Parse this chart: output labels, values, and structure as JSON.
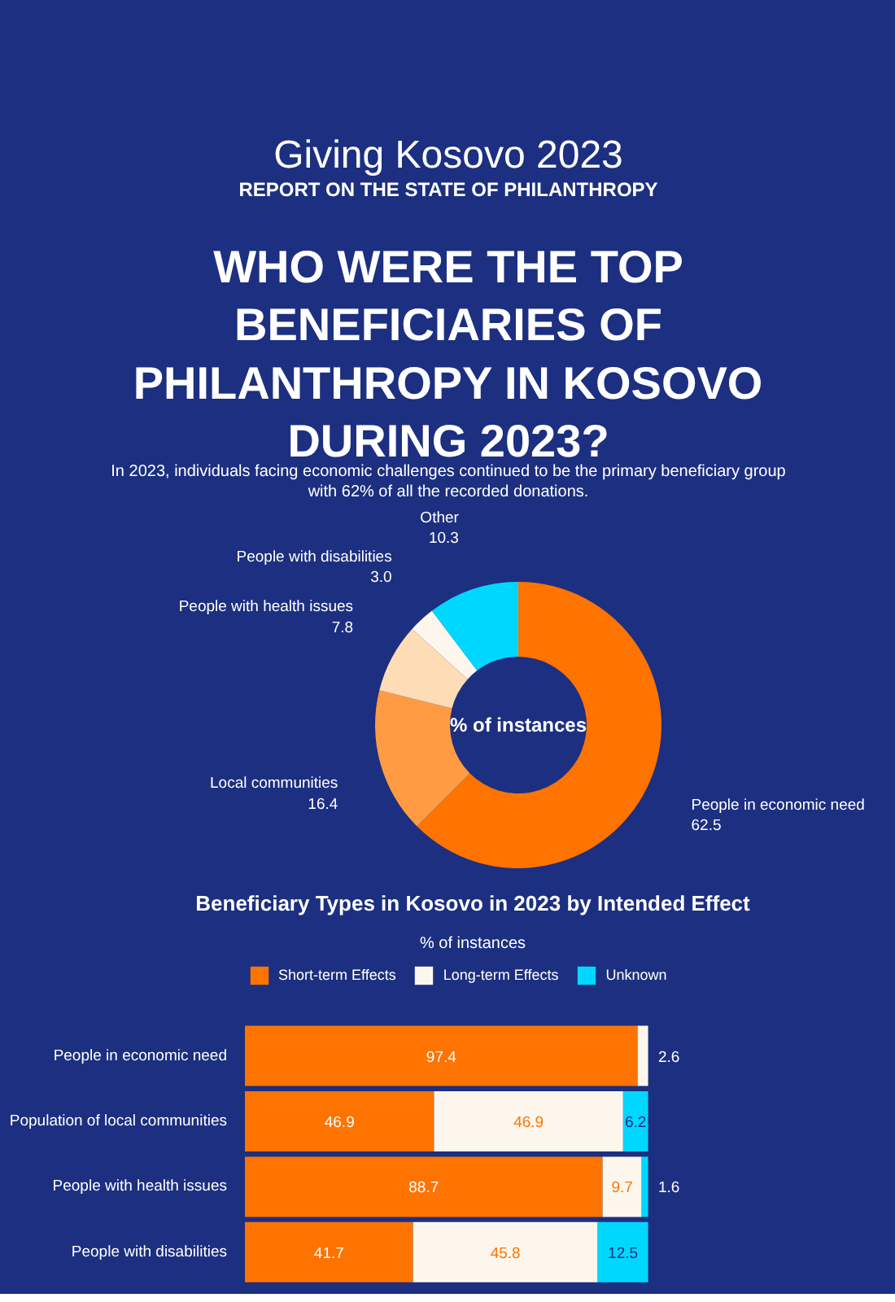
{
  "chart_data": [
    {
      "type": "donut",
      "title": "WHO WERE THE TOP BENEFICIARIES OF PHILANTHROPY IN KOSOVO DURING 2023?",
      "annotations": [
        "Giving Kosovo 2023",
        "REPORT ON THE STATE OF PHILANTHROPY",
        "In 2023, individuals facing economic challenges continued to be the primary beneficiary group with 62% of all the recorded donations.",
        "% of instances"
      ],
      "categories": [
        "People in economic need",
        "Local communities",
        "People with health issues",
        "People with disabilities",
        "Other"
      ],
      "values": [
        62.5,
        16.4,
        7.8,
        3.0,
        10.3
      ],
      "colors": [
        "#ff7300",
        "#ff9b42",
        "#fddcb6",
        "#fdf6ec",
        "#00d7ff"
      ],
      "value_labels": [
        "62.5",
        "16.4",
        "7.8",
        "3.0",
        "10.3"
      ]
    },
    {
      "type": "bar",
      "title": "Beneficiary Types in Kosovo in 2023 by Intended Effect",
      "subtitle": "% of instances",
      "orientation": "horizontal",
      "stacked": true,
      "categories": [
        "People in economic need",
        "Population of local communities",
        "People with health issues",
        "People with disabilities"
      ],
      "series": [
        {
          "name": "Short-term Effects",
          "color": "#ff7300",
          "values": [
            97.4,
            46.9,
            88.7,
            41.7
          ]
        },
        {
          "name": "Long-term Effects",
          "color": "#fdf6ec",
          "values": [
            2.6,
            46.9,
            9.7,
            45.8
          ]
        },
        {
          "name": "Unknown",
          "color": "#00d7ff",
          "values": [
            null,
            6.2,
            1.6,
            12.5
          ]
        }
      ],
      "tick_labels": "y",
      "legend": "top",
      "data_labels": true
    }
  ]
}
